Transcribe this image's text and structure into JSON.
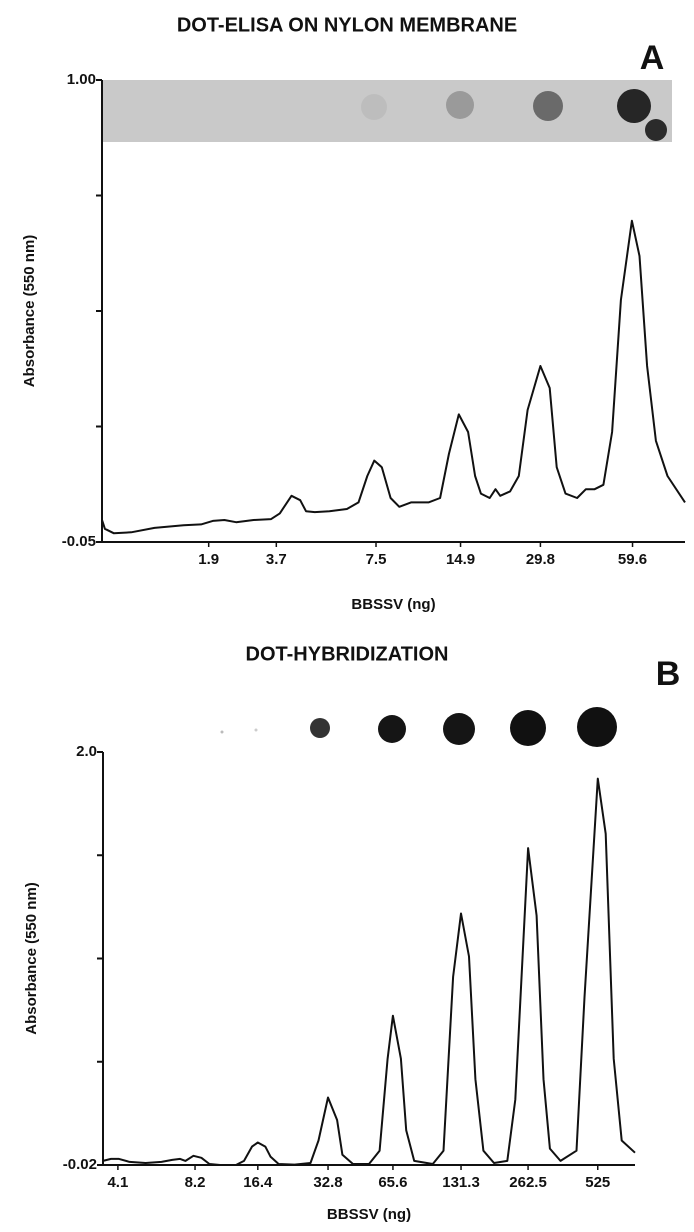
{
  "chart_data": [
    {
      "type": "line",
      "title": "DOT-ELISA ON NYLON MEMBRANE",
      "panel_label": "A",
      "x_label": "BBSSV (ng)",
      "y_label": "Absorbance (550 nm)",
      "xlim": [
        0,
        100
      ],
      "ylim": [
        -0.05,
        1.0
      ],
      "color": "#111111",
      "xticks": [
        {
          "value": 18.3,
          "label": "1.9"
        },
        {
          "value": 29.9,
          "label": "3.7"
        },
        {
          "value": 47,
          "label": "7.5"
        },
        {
          "value": 61.5,
          "label": "14.9"
        },
        {
          "value": 75.2,
          "label": "29.8"
        },
        {
          "value": 91,
          "label": "59.6"
        }
      ],
      "yticks": [
        -0.05,
        {
          "value": 1.0,
          "label": "1.00"
        }
      ],
      "yminor": [
        0.2125,
        0.475,
        0.7375
      ],
      "x": [
        0,
        0.5,
        2,
        5,
        9,
        14,
        17,
        19,
        21,
        23,
        26,
        29,
        30.5,
        32.5,
        34,
        35,
        36.5,
        39,
        42,
        44,
        45.5,
        46.7,
        48,
        49.5,
        51,
        53,
        56,
        58,
        59.5,
        61.2,
        62.8,
        64,
        65,
        66.5,
        67.5,
        68.3,
        70,
        71.5,
        73,
        75.2,
        76.8,
        78,
        79.5,
        81.5,
        83,
        84.5,
        86,
        87.5,
        89,
        90.9,
        92.2,
        93.5,
        95,
        97,
        100
      ],
      "values": [
        0.0,
        -0.02,
        -0.03,
        -0.028,
        -0.018,
        -0.012,
        -0.01,
        -0.002,
        0.0,
        -0.005,
        0.0,
        0.002,
        0.015,
        0.055,
        0.045,
        0.02,
        0.018,
        0.02,
        0.025,
        0.04,
        0.1,
        0.135,
        0.12,
        0.05,
        0.03,
        0.04,
        0.04,
        0.05,
        0.15,
        0.24,
        0.2,
        0.1,
        0.06,
        0.05,
        0.07,
        0.055,
        0.065,
        0.1,
        0.25,
        0.35,
        0.3,
        0.12,
        0.06,
        0.05,
        0.07,
        0.07,
        0.08,
        0.2,
        0.5,
        0.68,
        0.6,
        0.35,
        0.18,
        0.1,
        0.04
      ]
    },
    {
      "type": "line",
      "title": "DOT-HYBRIDIZATION",
      "panel_label": "B",
      "x_label": "BBSSV (ng)",
      "y_label": "Absorbance (550 nm)",
      "xlim": [
        0,
        100
      ],
      "ylim": [
        -0.02,
        2.0
      ],
      "color": "#111111",
      "xticks": [
        {
          "value": 2.8,
          "label": "4.1"
        },
        {
          "value": 17.3,
          "label": "8.2"
        },
        {
          "value": 29.1,
          "label": "16.4"
        },
        {
          "value": 42.3,
          "label": "32.8"
        },
        {
          "value": 54.5,
          "label": "65.6"
        },
        {
          "value": 67.3,
          "label": "131.3"
        },
        {
          "value": 79.9,
          "label": "262.5"
        },
        {
          "value": 93,
          "label": "525"
        }
      ],
      "yticks": [
        -0.02,
        {
          "value": 2.0,
          "label": "2.0"
        }
      ],
      "yminor": [
        0.485,
        0.99,
        1.495
      ],
      "x": [
        0,
        1.5,
        3,
        5,
        8,
        11,
        13,
        14.5,
        15.5,
        17,
        18.5,
        20,
        22,
        25,
        26.5,
        28,
        29.1,
        30.5,
        31.5,
        33,
        36,
        39,
        40.5,
        42.3,
        44,
        45,
        47,
        50,
        52,
        53.5,
        54.5,
        56,
        57,
        58.5,
        62,
        64,
        65.8,
        67.3,
        68.8,
        70,
        71.5,
        73.5,
        76,
        77.5,
        79.9,
        81.5,
        82.8,
        84,
        86,
        89,
        90.5,
        93,
        94.5,
        96,
        97.5,
        100
      ],
      "values": [
        0.0,
        0.01,
        0.01,
        -0.005,
        -0.01,
        -0.005,
        0.005,
        0.01,
        0.0,
        0.025,
        0.015,
        -0.015,
        -0.02,
        -0.02,
        0.0,
        0.07,
        0.09,
        0.07,
        0.02,
        -0.015,
        -0.018,
        -0.01,
        0.1,
        0.31,
        0.2,
        0.03,
        -0.015,
        -0.015,
        0.05,
        0.5,
        0.71,
        0.5,
        0.15,
        0.0,
        -0.015,
        0.05,
        0.9,
        1.21,
        1.0,
        0.4,
        0.05,
        -0.01,
        0.0,
        0.3,
        1.53,
        1.2,
        0.4,
        0.06,
        0.0,
        0.05,
        0.8,
        1.87,
        1.6,
        0.5,
        0.1,
        0.04
      ]
    }
  ]
}
